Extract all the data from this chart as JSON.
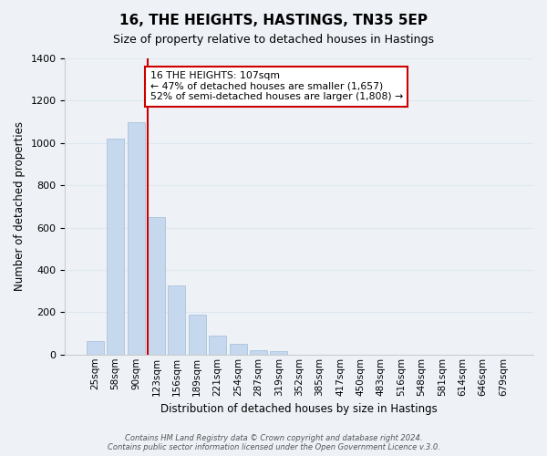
{
  "title": "16, THE HEIGHTS, HASTINGS, TN35 5EP",
  "subtitle": "Size of property relative to detached houses in Hastings",
  "xlabel": "Distribution of detached houses by size in Hastings",
  "ylabel": "Number of detached properties",
  "bar_labels": [
    "25sqm",
    "58sqm",
    "90sqm",
    "123sqm",
    "156sqm",
    "189sqm",
    "221sqm",
    "254sqm",
    "287sqm",
    "319sqm",
    "352sqm",
    "385sqm",
    "417sqm",
    "450sqm",
    "483sqm",
    "516sqm",
    "548sqm",
    "581sqm",
    "614sqm",
    "646sqm",
    "679sqm"
  ],
  "bar_values": [
    65,
    1020,
    1100,
    650,
    325,
    190,
    90,
    50,
    22,
    15,
    0,
    0,
    0,
    0,
    0,
    0,
    0,
    0,
    0,
    0,
    0
  ],
  "bar_color": "#c5d8ed",
  "bar_edge_color": "#a0bcd8",
  "vline_x": 2.575,
  "vline_color": "#cc0000",
  "annotation_line1": "16 THE HEIGHTS: 107sqm",
  "annotation_line2": "← 47% of detached houses are smaller (1,657)",
  "annotation_line3": "52% of semi-detached houses are larger (1,808) →",
  "annotation_box_color": "#ffffff",
  "annotation_box_edge_color": "#cc0000",
  "ylim": [
    0,
    1400
  ],
  "yticks": [
    0,
    200,
    400,
    600,
    800,
    1000,
    1200,
    1400
  ],
  "footer_text": "Contains HM Land Registry data © Crown copyright and database right 2024.\nContains public sector information licensed under the Open Government Licence v.3.0.",
  "grid_color": "#dce8f0",
  "background_color": "#eef2f7"
}
